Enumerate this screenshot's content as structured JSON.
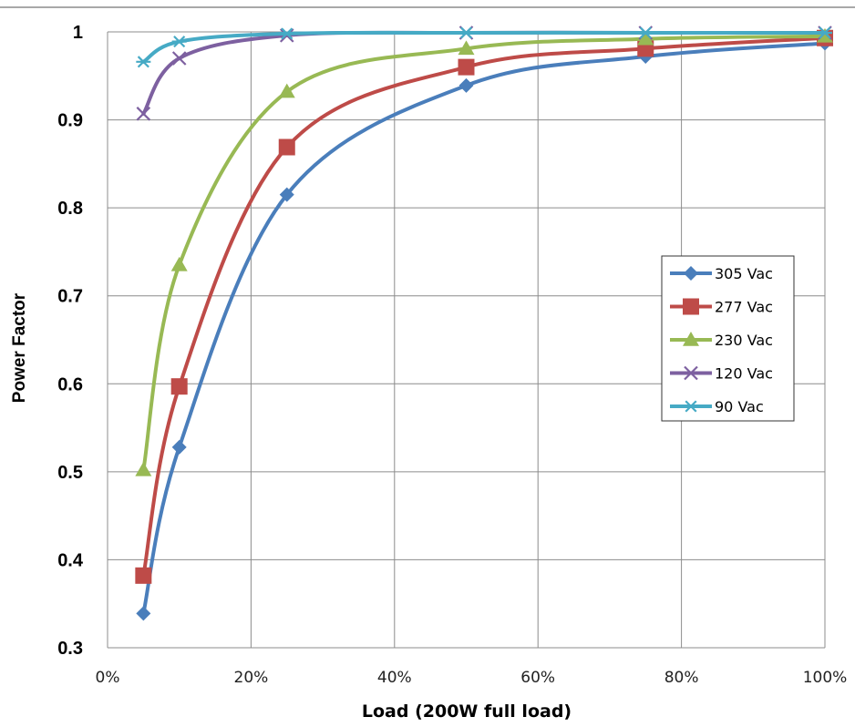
{
  "chart_data": {
    "type": "line",
    "xlabel": "Load (200W full load)",
    "ylabel": "Power Factor",
    "xlim": [
      0,
      100
    ],
    "ylim": [
      0.3,
      1
    ],
    "x_ticks": [
      "0%",
      "20%",
      "40%",
      "60%",
      "80%",
      "100%"
    ],
    "y_ticks": [
      "0.3",
      "0.4",
      "0.5",
      "0.6",
      "0.7",
      "0.8",
      "0.9",
      "1"
    ],
    "grid": true,
    "legend_position": "right",
    "series": [
      {
        "name": "305 Vac",
        "color": "#4A7EBB",
        "marker": "diamond",
        "x": [
          5,
          10,
          25,
          50,
          75,
          100
        ],
        "y": [
          0.339,
          0.528,
          0.815,
          0.939,
          0.972,
          0.987
        ]
      },
      {
        "name": "277 Vac",
        "color": "#BE4B48",
        "marker": "square",
        "x": [
          5,
          10,
          25,
          50,
          75,
          100
        ],
        "y": [
          0.382,
          0.597,
          0.869,
          0.96,
          0.981,
          0.993
        ]
      },
      {
        "name": "230 Vac",
        "color": "#98B954",
        "marker": "triangle",
        "x": [
          5,
          10,
          25,
          50,
          75,
          100
        ],
        "y": [
          0.502,
          0.735,
          0.932,
          0.981,
          0.992,
          0.995
        ]
      },
      {
        "name": "120 Vac",
        "color": "#7D60A0",
        "marker": "x",
        "x": [
          5,
          10,
          25,
          50,
          75,
          100
        ],
        "y": [
          0.907,
          0.97,
          0.996,
          0.999,
          0.999,
          0.999
        ]
      },
      {
        "name": "90 Vac",
        "color": "#46AAC5",
        "marker": "star",
        "x": [
          5,
          10,
          25,
          50,
          75,
          100
        ],
        "y": [
          0.966,
          0.989,
          0.998,
          0.999,
          0.999,
          0.999
        ]
      }
    ]
  }
}
